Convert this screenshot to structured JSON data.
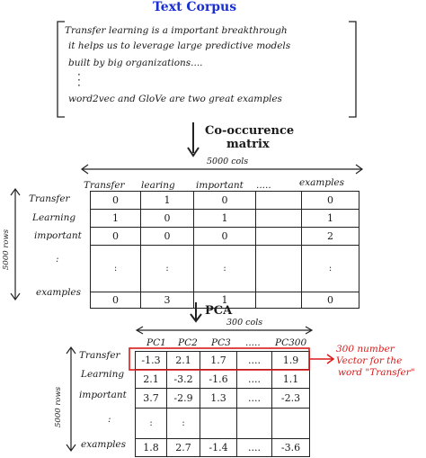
{
  "title": "Text Corpus",
  "corpus_lines": [
    "Transfer learning is a important breakthrough",
    "it helps us to leverage large predictive models",
    "built by big organizations....",
    "word2vec and GloVe are two great examples"
  ],
  "step1_label_line1": "Co-occurence",
  "step1_label_line2": "matrix",
  "cooc": {
    "cols_label": "5000 cols",
    "rows_label": "5000 rows",
    "headers": [
      "Transfer",
      "learing",
      "important",
      ".....",
      "examples"
    ],
    "rows": [
      {
        "label": "Transfer",
        "values": [
          "0",
          "1",
          "0",
          "",
          "0"
        ]
      },
      {
        "label": "Learning",
        "values": [
          "1",
          "0",
          "1",
          "",
          "1"
        ]
      },
      {
        "label": "important",
        "values": [
          "0",
          "0",
          "0",
          "",
          "2"
        ]
      },
      {
        "label": ":",
        "values": [
          ":",
          ":",
          ":",
          "",
          ":"
        ]
      },
      {
        "label": "examples",
        "values": [
          "0",
          "3",
          "1",
          "",
          "0"
        ]
      }
    ]
  },
  "step2_label": "PCA",
  "pca": {
    "cols_label": "300 cols",
    "rows_label": "5000 rows",
    "headers": [
      "PC1",
      "PC2",
      "PC3",
      ".....",
      "PC300"
    ],
    "rows": [
      {
        "label": "Transfer",
        "values": [
          "-1.3",
          "2.1",
          "1.7",
          "....",
          "1.9"
        ]
      },
      {
        "label": "Learning",
        "values": [
          "2.1",
          "-3.2",
          "-1.6",
          "....",
          "1.1"
        ]
      },
      {
        "label": "important",
        "values": [
          "3.7",
          "-2.9",
          "1.3",
          "....",
          "-2.3"
        ]
      },
      {
        "label": ":",
        "values": [
          ":",
          ":",
          "",
          "",
          ""
        ]
      },
      {
        "label": "examples",
        "values": [
          "1.8",
          "2.7",
          "-1.4",
          "....",
          "-3.6"
        ]
      }
    ]
  },
  "annotation": [
    "300 number",
    "Vector for the",
    "word \"Transfer\""
  ],
  "colors": {
    "title": "#1a2fd0",
    "highlight": "#d91a1a",
    "ink": "#1a1a1a"
  }
}
